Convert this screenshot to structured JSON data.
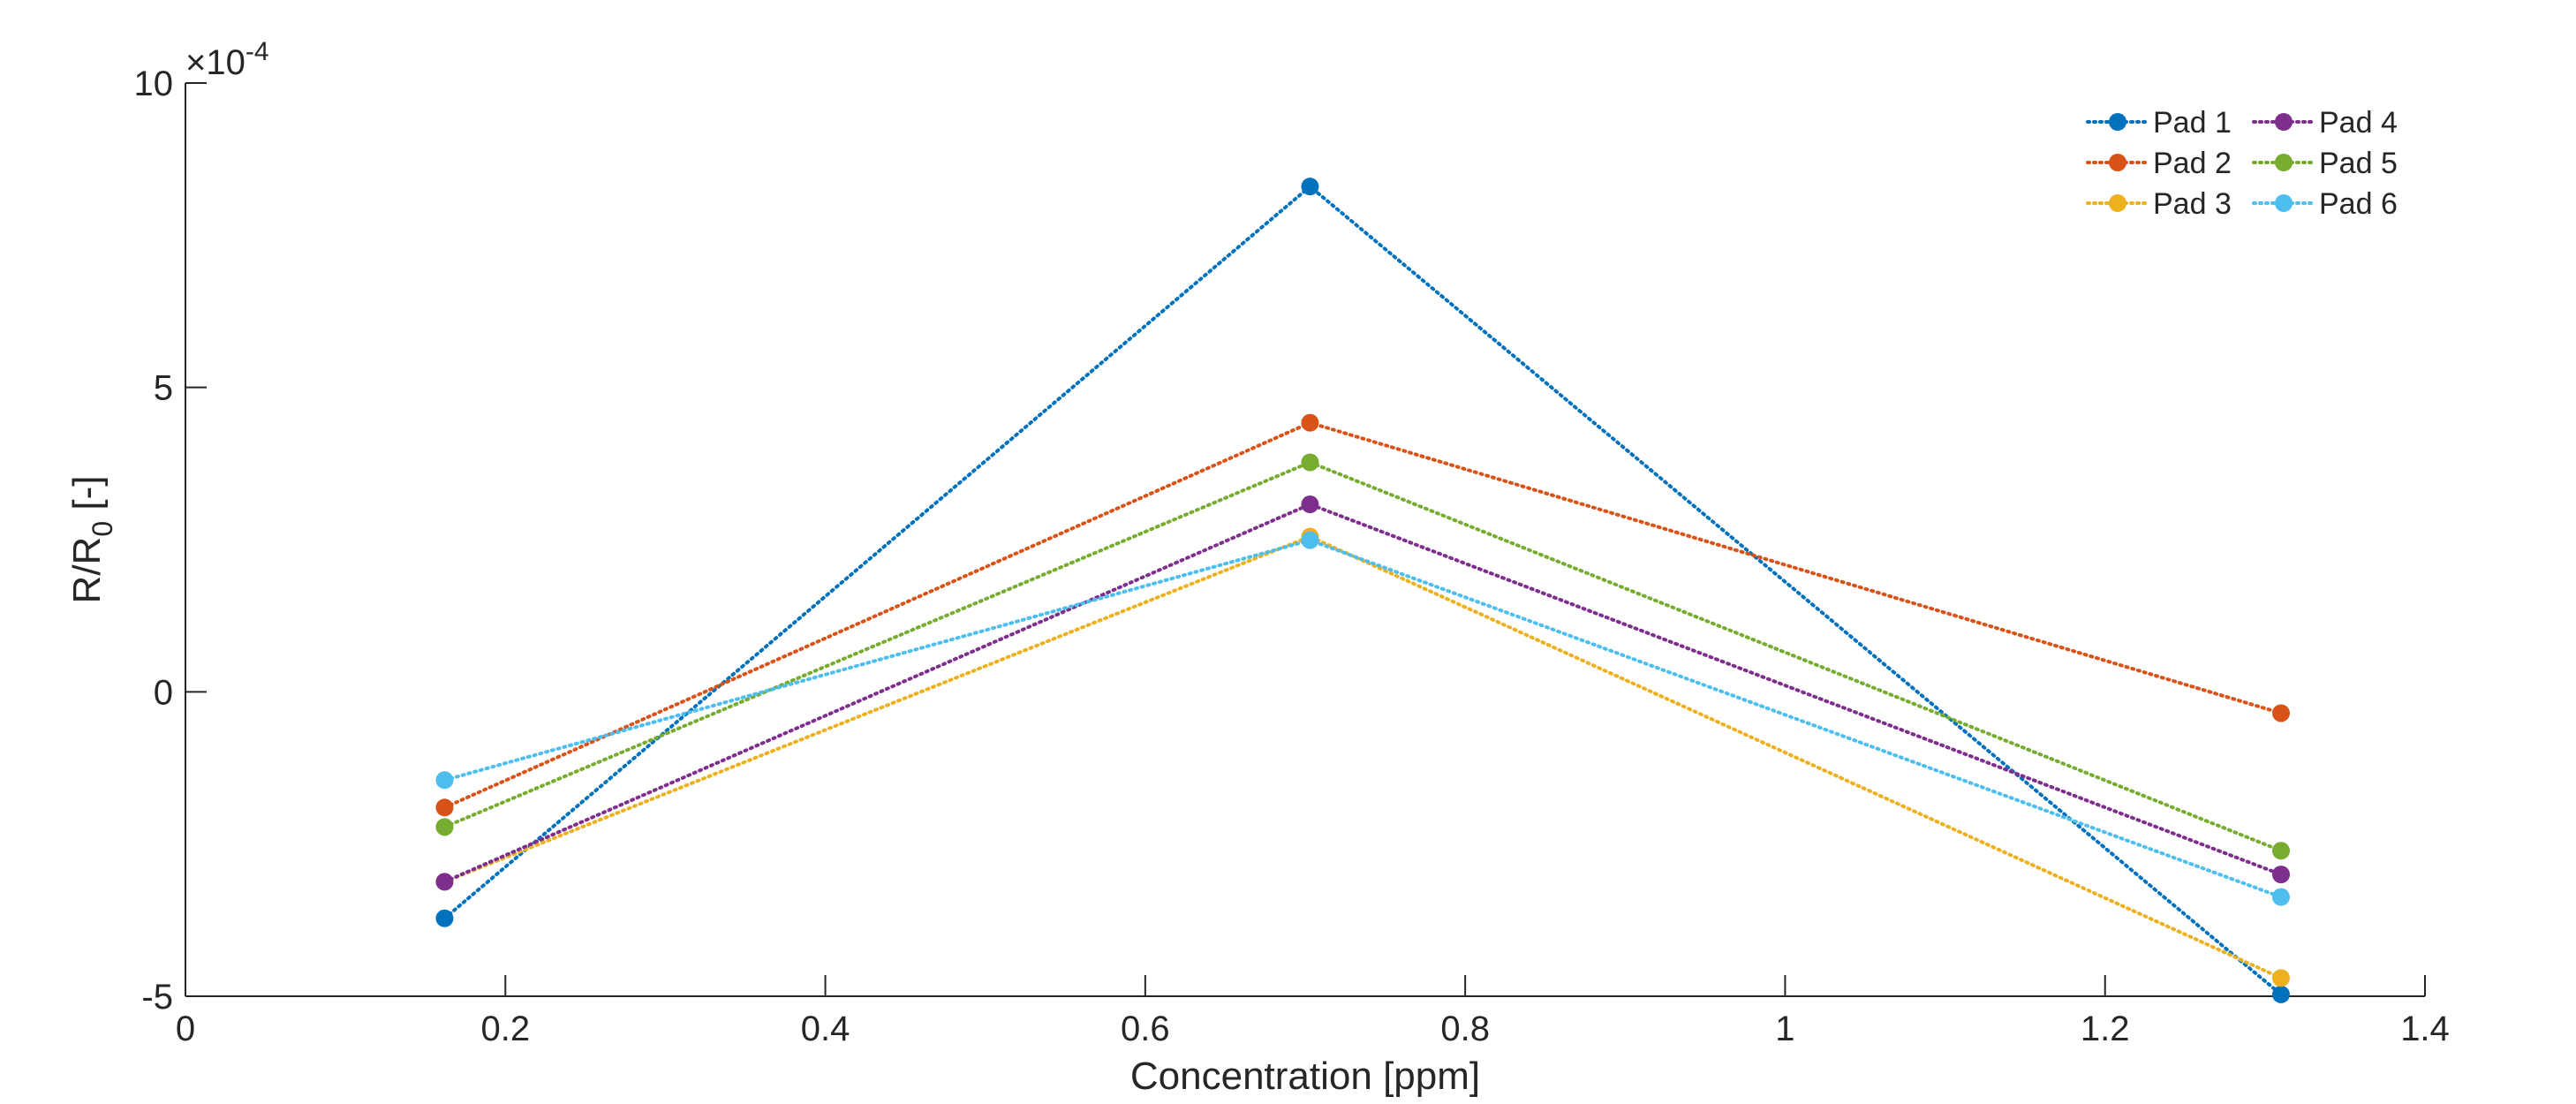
{
  "chart_data": {
    "type": "line",
    "xlabel": "Concentration [ppm]",
    "ylabel": {
      "main": "R/R",
      "subscript": "0",
      "suffix": " [-]"
    },
    "y_multiplier": {
      "base": "×10",
      "exponent": "-4"
    },
    "xlim": [
      0,
      1.4
    ],
    "ylim": [
      -5,
      10
    ],
    "x_ticks": [
      {
        "value": 0,
        "label": "0"
      },
      {
        "value": 0.2,
        "label": "0.2"
      },
      {
        "value": 0.4,
        "label": "0.4"
      },
      {
        "value": 0.6,
        "label": "0.6"
      },
      {
        "value": 0.8,
        "label": "0.8"
      },
      {
        "value": 1.0,
        "label": "1"
      },
      {
        "value": 1.2,
        "label": "1.2"
      },
      {
        "value": 1.4,
        "label": "1.4"
      }
    ],
    "y_ticks": [
      {
        "value": -5,
        "label": "-5"
      },
      {
        "value": 0,
        "label": "0"
      },
      {
        "value": 5,
        "label": "5"
      },
      {
        "value": 10,
        "label": "10"
      }
    ],
    "grid": false,
    "legend_position": "top-right",
    "line_style": "dotted",
    "marker": "filled-circle",
    "x": [
      0.162,
      0.703,
      1.31
    ],
    "series": [
      {
        "name": "Pad 1",
        "color": "#0072BD",
        "values": [
          -3.72,
          8.3,
          -4.97
        ]
      },
      {
        "name": "Pad 2",
        "color": "#D95319",
        "values": [
          -1.9,
          4.42,
          -0.35
        ]
      },
      {
        "name": "Pad 3",
        "color": "#EDB120",
        "values": [
          -3.12,
          2.55,
          -4.7
        ]
      },
      {
        "name": "Pad 4",
        "color": "#7E2F8E",
        "values": [
          -3.12,
          3.08,
          -3.0
        ]
      },
      {
        "name": "Pad 5",
        "color": "#77AC30",
        "values": [
          -2.22,
          3.77,
          -2.61
        ]
      },
      {
        "name": "Pad 6",
        "color": "#4DBEEE",
        "values": [
          -1.45,
          2.49,
          -3.37
        ]
      }
    ]
  }
}
